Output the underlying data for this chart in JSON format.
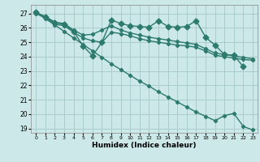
{
  "xlabel": "Humidex (Indice chaleur)",
  "background_color": "#cce8e8",
  "grid_color": "#aacccc",
  "line_color": "#2d7a6e",
  "xlim": [
    -0.5,
    23.5
  ],
  "ylim": [
    18.7,
    27.6
  ],
  "yticks": [
    19,
    20,
    21,
    22,
    23,
    24,
    25,
    26,
    27
  ],
  "xticks": [
    0,
    1,
    2,
    3,
    4,
    5,
    6,
    7,
    8,
    9,
    10,
    11,
    12,
    13,
    14,
    15,
    16,
    17,
    18,
    19,
    20,
    21,
    22,
    23
  ],
  "series": [
    {
      "x": [
        0,
        1,
        2,
        3,
        4,
        5,
        6,
        7,
        8,
        9,
        10,
        11,
        12,
        13,
        14,
        15,
        16,
        17,
        18,
        19,
        20,
        21,
        22
      ],
      "y": [
        27.1,
        26.75,
        26.35,
        26.25,
        25.75,
        24.75,
        24.05,
        25.0,
        26.55,
        26.3,
        26.15,
        26.1,
        26.05,
        26.5,
        26.1,
        26.05,
        26.1,
        26.5,
        25.35,
        24.8,
        24.15,
        24.1,
        23.3
      ],
      "ms": 3.5
    },
    {
      "x": [
        0,
        1,
        2,
        3,
        4,
        5,
        6,
        7,
        8,
        9,
        10,
        11,
        12,
        13,
        14,
        15,
        16,
        17,
        18,
        19,
        20,
        21,
        22,
        23
      ],
      "y": [
        27.05,
        26.8,
        26.4,
        26.3,
        25.85,
        25.5,
        25.55,
        25.85,
        26.15,
        25.85,
        25.65,
        25.5,
        25.35,
        25.25,
        25.15,
        25.05,
        24.95,
        24.85,
        24.55,
        24.25,
        24.15,
        24.05,
        23.95,
        23.85
      ],
      "ms": 2.2
    },
    {
      "x": [
        0,
        1,
        2,
        3,
        4,
        5,
        6,
        7,
        8,
        9,
        10,
        11,
        12,
        13,
        14,
        15,
        16,
        17,
        18,
        19,
        20,
        21,
        22,
        23
      ],
      "y": [
        27.0,
        26.7,
        26.25,
        26.15,
        25.7,
        25.3,
        25.1,
        25.0,
        25.7,
        25.6,
        25.45,
        25.25,
        25.1,
        25.0,
        24.9,
        24.8,
        24.75,
        24.65,
        24.4,
        24.1,
        24.0,
        23.9,
        23.8,
        23.75
      ],
      "ms": 2.2
    },
    {
      "x": [
        0,
        1,
        2,
        3,
        4,
        5,
        6,
        7,
        8,
        9,
        10,
        11,
        12,
        13,
        14,
        15,
        16,
        17,
        18,
        19,
        20,
        21,
        22,
        23
      ],
      "y": [
        27.05,
        26.65,
        26.2,
        25.75,
        25.3,
        24.85,
        24.4,
        23.95,
        23.5,
        23.1,
        22.7,
        22.3,
        21.95,
        21.55,
        21.2,
        20.85,
        20.5,
        20.15,
        19.85,
        19.55,
        19.9,
        20.05,
        19.15,
        18.9
      ],
      "ms": 2.2
    }
  ]
}
